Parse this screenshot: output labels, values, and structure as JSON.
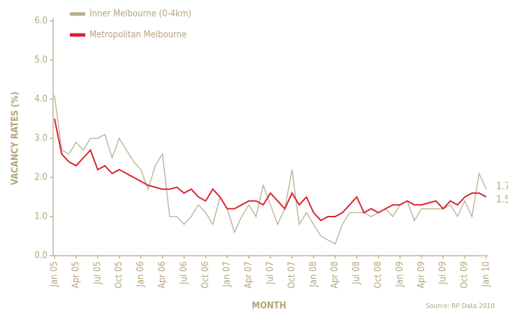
{
  "chart_data": {
    "type": "line",
    "x_label": "MONTH",
    "y_label": "VACANCY RATES (%)",
    "source": "Source: RP Data 2010",
    "categories": [
      "Jan 05",
      null,
      null,
      "Apr 05",
      null,
      null,
      "Jul 05",
      null,
      null,
      "Oct 05",
      null,
      null,
      "Jan 06",
      null,
      null,
      "Apr 06",
      null,
      null,
      "Jul 06",
      null,
      null,
      "Oct 06",
      null,
      null,
      "Jan 07",
      null,
      null,
      "Apr 07",
      null,
      null,
      "Jul 07",
      null,
      null,
      "Oct 07",
      null,
      null,
      "Jan 08",
      null,
      null,
      "Apr 08",
      null,
      null,
      "Jul 08",
      null,
      null,
      "Oct 08",
      null,
      null,
      "Jan 09",
      null,
      null,
      "Apr 09",
      null,
      null,
      "Jul 09",
      null,
      null,
      "Oct 09",
      null,
      null,
      "Jan 10"
    ],
    "series": [
      {
        "name": "Inner Melbourne (0-4km)",
        "color": "#b8ad90",
        "values": [
          4.1,
          2.7,
          2.6,
          2.9,
          2.7,
          3.0,
          3.0,
          3.1,
          2.5,
          3.0,
          2.7,
          2.4,
          2.2,
          1.7,
          2.3,
          2.6,
          1.0,
          1.0,
          0.8,
          1.0,
          1.3,
          1.1,
          0.8,
          1.5,
          1.2,
          0.6,
          1.0,
          1.3,
          1.0,
          1.8,
          1.3,
          0.8,
          1.2,
          2.2,
          0.8,
          1.1,
          0.8,
          0.5,
          0.4,
          0.3,
          0.8,
          1.1,
          1.1,
          1.1,
          1.0,
          1.1,
          1.2,
          1.0,
          1.3,
          1.4,
          0.9,
          1.2,
          1.2,
          1.2,
          1.2,
          1.3,
          1.0,
          1.4,
          1.0,
          2.1,
          1.7
        ]
      },
      {
        "name": "Metropolitan Melbourne",
        "color": "#d9252b",
        "values": [
          3.5,
          2.6,
          2.4,
          2.3,
          2.5,
          2.7,
          2.2,
          2.3,
          2.1,
          2.2,
          2.1,
          2.0,
          1.9,
          1.8,
          1.75,
          1.7,
          1.7,
          1.75,
          1.6,
          1.7,
          1.5,
          1.4,
          1.7,
          1.5,
          1.2,
          1.2,
          1.3,
          1.4,
          1.4,
          1.3,
          1.6,
          1.4,
          1.2,
          1.6,
          1.3,
          1.5,
          1.1,
          0.9,
          1.0,
          1.0,
          1.1,
          1.3,
          1.5,
          1.1,
          1.2,
          1.1,
          1.2,
          1.3,
          1.3,
          1.4,
          1.3,
          1.3,
          1.35,
          1.4,
          1.2,
          1.4,
          1.3,
          1.5,
          1.6,
          1.6,
          1.5
        ]
      }
    ],
    "ylim": [
      0,
      6
    ],
    "yticks": [
      {
        "value": 0,
        "label": "0.0"
      },
      {
        "value": 1,
        "label": "1.0"
      },
      {
        "value": 2,
        "label": "2.0"
      },
      {
        "value": 3,
        "label": "3.0"
      },
      {
        "value": 4,
        "label": "4.0"
      },
      {
        "value": 5,
        "label": "5.0"
      },
      {
        "value": 6,
        "label": "6.0"
      }
    ],
    "grid": false
  }
}
